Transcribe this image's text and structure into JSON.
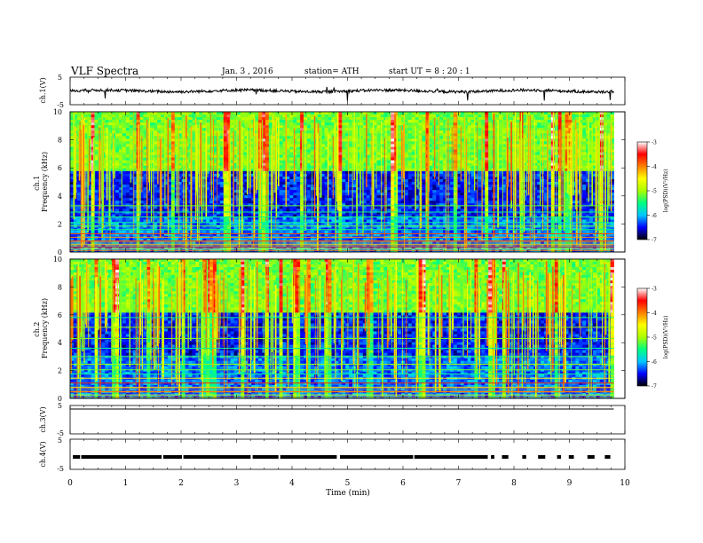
{
  "header": {
    "title": "VLF  Spectra",
    "date": "Jan.  3  , 2016",
    "station": "station= ATH",
    "start": "start  UT  =    8  : 20 : 1"
  },
  "colors": {
    "background": "#ffffff",
    "trace": "#000000",
    "colormap": [
      "#000000",
      "#0000ff",
      "#00c8ff",
      "#00ff80",
      "#aaff00",
      "#ffff00",
      "#ff8000",
      "#ff0000",
      "#ffffff"
    ]
  },
  "chart_data": [
    {
      "type": "line",
      "panel": "ch1-waveform",
      "ylabel": "ch.1(V)",
      "ylim": [
        -5,
        5
      ],
      "yticks": [
        "5",
        "-5"
      ],
      "x_range": [
        0,
        10
      ],
      "trace_level_v": 0,
      "trace_noise_v": 1,
      "trace_end_min": 9.8
    },
    {
      "type": "heatmap",
      "panel": "ch1-spectrogram",
      "ylabel": "ch.1\nFrequency (kHz)",
      "ylim": [
        0,
        10
      ],
      "yticks": [
        "10",
        "8",
        "6",
        "4",
        "2",
        "0"
      ],
      "colorbar": {
        "label": "log(PSD)(V²/Hz)",
        "range": [
          -7,
          -3
        ],
        "ticks": [
          "-3",
          "-4",
          "-5",
          "-6",
          "-7"
        ]
      },
      "dark_band_khz": [
        2.5,
        5.8
      ],
      "tonal_lines_khz": [
        0.2,
        0.35,
        0.55,
        0.8,
        1.05,
        1.3,
        1.6,
        1.85,
        2.1,
        2.5,
        2.85,
        3.3
      ],
      "data_end_min": 9.8
    },
    {
      "type": "heatmap",
      "panel": "ch2-spectrogram",
      "ylabel": "ch.2\nFrequency (kHz)",
      "ylim": [
        0,
        10
      ],
      "yticks": [
        "10",
        "8",
        "6",
        "4",
        "2",
        "0"
      ],
      "colorbar": {
        "label": "log(PSD)(V²/Hz)",
        "range": [
          -7,
          -3
        ],
        "ticks": [
          "-3",
          "-4",
          "-5",
          "-6",
          "-7"
        ]
      },
      "dark_band_khz": [
        3.0,
        6.2
      ],
      "tonal_lines_khz": [
        0.25,
        0.5,
        0.8,
        1.1,
        1.45,
        1.75,
        2.05,
        2.45,
        3.0,
        3.6,
        4.3,
        5.1,
        5.8
      ],
      "data_end_min": 9.8
    },
    {
      "type": "line",
      "panel": "ch3-waveform",
      "ylabel": "ch.3(V)",
      "ylim": [
        -5,
        5
      ],
      "yticks": [
        "5",
        "-5"
      ],
      "trace_level_v": 5,
      "trace_end_min": 9.8
    },
    {
      "type": "line",
      "panel": "ch4-waveform",
      "ylabel": "ch.4(V)",
      "ylim": [
        -5,
        5
      ],
      "yticks": [
        "5",
        "-5"
      ],
      "trace_level_v": 0,
      "trace_end_min": 9.8,
      "xlabel": "Time  (min)",
      "xticks": [
        "0",
        "1",
        "2",
        "3",
        "4",
        "5",
        "6",
        "7",
        "8",
        "9",
        "10"
      ],
      "xlim": [
        0,
        10
      ]
    }
  ]
}
